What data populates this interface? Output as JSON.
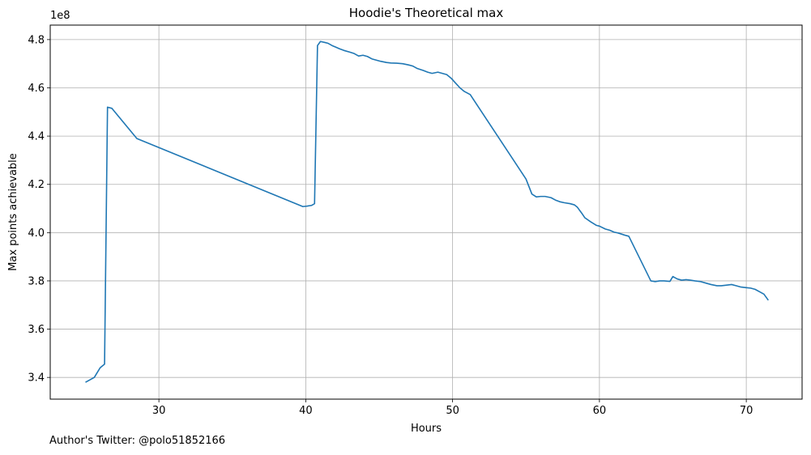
{
  "chart_data": {
    "type": "line",
    "title": "Hoodie's Theoretical max",
    "xlabel": "Hours",
    "ylabel": "Max points achievable",
    "y_multiplier_label": "1e8",
    "xlim": [
      22.6,
      73.8
    ],
    "ylim": [
      3.31,
      4.86
    ],
    "x_ticks": [
      30,
      40,
      50,
      60,
      70
    ],
    "y_ticks": [
      3.4,
      3.6,
      3.8,
      4.0,
      4.2,
      4.4,
      4.6,
      4.8
    ],
    "y_tick_labels": [
      "3.4",
      "3.6",
      "3.8",
      "4.0",
      "4.2",
      "4.4",
      "4.6",
      "4.8"
    ],
    "grid": true,
    "line_color": "#1f77b4",
    "series": [
      {
        "x": [
          25.0,
          25.3,
          25.6,
          25.8,
          26.0,
          26.2,
          26.3,
          26.5,
          26.8,
          28.5,
          39.8,
          40.1,
          40.4,
          40.6,
          40.8,
          41.0,
          41.3,
          41.5,
          41.8,
          42.0,
          42.3,
          42.6,
          43.0,
          43.3,
          43.6,
          43.9,
          44.2,
          44.5,
          44.8,
          45.1,
          45.5,
          45.8,
          46.2,
          46.6,
          47.0,
          47.3,
          47.6,
          48.0,
          48.3,
          48.6,
          49.0,
          49.3,
          49.6,
          49.9,
          50.2,
          50.5,
          50.8,
          51.2,
          55.0,
          55.4,
          55.7,
          56.0,
          56.3,
          56.7,
          57.0,
          57.3,
          57.6,
          58.0,
          58.3,
          58.5,
          58.8,
          59.0,
          59.4,
          59.8,
          60.0,
          60.4,
          60.7,
          61.0,
          61.3,
          61.7,
          62.0,
          63.5,
          63.8,
          64.1,
          64.4,
          64.8,
          65.0,
          65.3,
          65.6,
          65.9,
          66.2,
          66.5,
          66.9,
          67.3,
          67.6,
          68.0,
          68.3,
          68.6,
          69.0,
          69.3,
          69.6,
          70.0,
          70.3,
          70.6,
          70.9,
          71.2,
          71.5
        ],
        "y": [
          3.38,
          3.39,
          3.4,
          3.42,
          3.44,
          3.45,
          3.455,
          4.52,
          4.515,
          4.39,
          4.108,
          4.11,
          4.113,
          4.12,
          4.775,
          4.792,
          4.788,
          4.785,
          4.775,
          4.77,
          4.762,
          4.755,
          4.748,
          4.742,
          4.732,
          4.735,
          4.73,
          4.72,
          4.715,
          4.71,
          4.705,
          4.703,
          4.702,
          4.7,
          4.695,
          4.69,
          4.68,
          4.672,
          4.665,
          4.66,
          4.665,
          4.66,
          4.655,
          4.64,
          4.62,
          4.6,
          4.585,
          4.572,
          4.222,
          4.16,
          4.148,
          4.15,
          4.15,
          4.145,
          4.135,
          4.128,
          4.124,
          4.12,
          4.115,
          4.105,
          4.08,
          4.062,
          4.045,
          4.03,
          4.027,
          4.015,
          4.01,
          4.002,
          3.998,
          3.99,
          3.985,
          3.8,
          3.797,
          3.8,
          3.8,
          3.798,
          3.818,
          3.808,
          3.803,
          3.805,
          3.803,
          3.8,
          3.797,
          3.79,
          3.785,
          3.78,
          3.78,
          3.782,
          3.785,
          3.78,
          3.775,
          3.772,
          3.77,
          3.765,
          3.755,
          3.745,
          3.72
        ]
      }
    ]
  },
  "footer": {
    "note": "Author's Twitter: @polo51852166"
  }
}
